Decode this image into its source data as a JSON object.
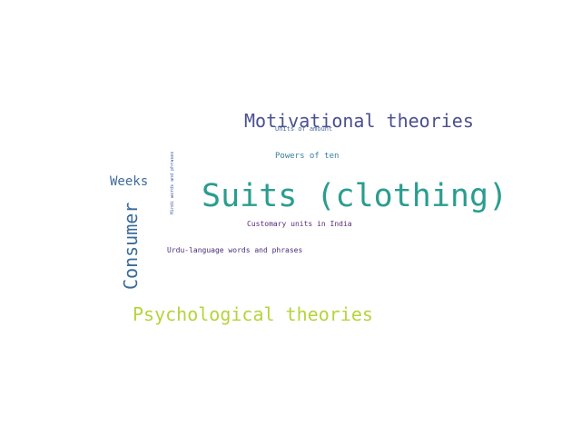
{
  "word_cloud": {
    "words": [
      {
        "id": "suits",
        "text": "Suits (clothing)",
        "color": "#2a9d8f",
        "orientation": "horizontal"
      },
      {
        "id": "motivational",
        "text": "Motivational theories",
        "color": "#4b4f8f",
        "orientation": "horizontal"
      },
      {
        "id": "psychological",
        "text": "Psychological theories",
        "color": "#b5d43d",
        "orientation": "horizontal"
      },
      {
        "id": "consumer",
        "text": "Consumer",
        "color": "#3b6c99",
        "orientation": "vertical"
      },
      {
        "id": "weeks",
        "text": "Weeks",
        "color": "#3f6a9a",
        "orientation": "horizontal"
      },
      {
        "id": "powers",
        "text": "Powers of ten",
        "color": "#3a7f9a",
        "orientation": "horizontal"
      },
      {
        "id": "customary",
        "text": "Customary units in India",
        "color": "#5a2a7a",
        "orientation": "horizontal"
      },
      {
        "id": "urdu",
        "text": "Urdu-language words and phrases",
        "color": "#4a2b7a",
        "orientation": "horizontal"
      },
      {
        "id": "units",
        "text": "Units of amount",
        "color": "#4b6a9a",
        "orientation": "horizontal"
      },
      {
        "id": "hindi",
        "text": "Hindi words and phrases",
        "color": "#3f5a9a",
        "orientation": "vertical"
      }
    ]
  }
}
